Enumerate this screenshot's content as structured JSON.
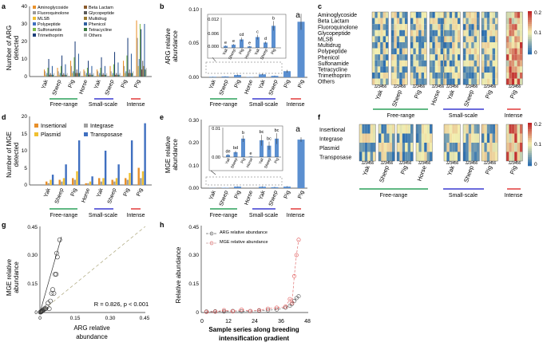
{
  "panels": {
    "a": {
      "letter": "a",
      "ylabel": [
        "Number of ARG",
        "detected"
      ],
      "yticks": [
        "0",
        "10",
        "20",
        "30",
        "40"
      ],
      "legend": [
        "Aminoglycoside",
        "Fluoroquinolone",
        "MLSB",
        "Polypeptide",
        "Sulfonamide",
        "Trimethoprim",
        "Beta Lactam",
        "Glycopeptide",
        "Multidrug",
        "Phenicol",
        "Tetracycline",
        "Others"
      ],
      "xlabels": [
        "Yak",
        "Sheep",
        "Pig",
        "Horse",
        "Yak",
        "Sheep",
        "Pig",
        "Pig"
      ],
      "groups": [
        "Free-range",
        "Small-scale",
        "Intense"
      ]
    },
    "b": {
      "letter": "b",
      "ylabel": [
        "ARG relative",
        "abundance"
      ],
      "yticks": [
        "0.00",
        "0.05",
        "0.10"
      ],
      "inset_yticks": [
        "0.000",
        "0.006",
        "0.012"
      ],
      "inset_xlabels": [
        "Yak",
        "Sheep",
        "Pig",
        "Horse",
        "Yak",
        "Sheep",
        "Pig"
      ],
      "inset_letters": [
        "e",
        "e",
        "cd",
        "e",
        "c",
        "d",
        "b"
      ],
      "bar_letter": "a",
      "xlabels": [
        "Yak",
        "Sheep",
        "Pig",
        "Horse",
        "Yak",
        "Sheep",
        "Pig",
        "Pig"
      ],
      "groups": [
        "Free-range",
        "Small-scale",
        "Intense"
      ]
    },
    "c": {
      "letter": "c",
      "rows": [
        "Aminoglycoside",
        "Beta Lactam",
        "Fluoroquinolone",
        "Glycopeptide",
        "MLSB",
        "Multidrug",
        "Polypeptide",
        "Phenicol",
        "Sulfonamide",
        "Tetracycline",
        "Trimethoprim",
        "Others"
      ],
      "colorbar": [
        "0.2",
        "0.1",
        "0"
      ],
      "colnums": "123456",
      "xlabels": [
        "Yak",
        "Sheep",
        "Pig",
        "Horse",
        "Yak",
        "Sheep",
        "Pig",
        "Pig"
      ],
      "groups": [
        "Free-range",
        "Small-scale",
        "Intense"
      ]
    },
    "d": {
      "letter": "d",
      "ylabel": [
        "Number of MGE",
        "detected"
      ],
      "yticks": [
        "0",
        "5",
        "10",
        "15",
        "20"
      ],
      "legend": [
        "Insertional",
        "Integrase",
        "Plasmid",
        "Transposase"
      ],
      "xlabels": [
        "Yak",
        "Sheep",
        "Pig",
        "Horse",
        "Yak",
        "Sheep",
        "Pig",
        "Pig"
      ],
      "groups": [
        "Free-range",
        "Small-scale",
        "Intense"
      ]
    },
    "e": {
      "letter": "e",
      "ylabel": [
        "MGE relative",
        "abundance"
      ],
      "yticks": [
        "0.00",
        "0.10",
        "0.20",
        "0.30"
      ],
      "inset_yticks": [
        "0.00",
        "0.01"
      ],
      "inset_xlabels": [
        "Yak",
        "Sheep",
        "Pig",
        "Horse",
        "Yak",
        "Sheep",
        "Pig"
      ],
      "inset_letters": [
        "de",
        "bd",
        "b",
        "e",
        "bc",
        "bc",
        "bc"
      ],
      "bar_letter": "a",
      "xlabels": [
        "Yak",
        "Sheep",
        "Pig",
        "Horse",
        "Yak",
        "Sheep",
        "Pig",
        "Pig"
      ],
      "groups": [
        "Free-range",
        "Small-scale",
        "Intense"
      ]
    },
    "f": {
      "letter": "f",
      "rows": [
        "Insertional",
        "Integrase",
        "Plasmid",
        "Transposase"
      ],
      "colorbar": [
        "0.2",
        "0.1",
        "0"
      ],
      "colnums": "123456",
      "xlabels": [
        "Yak",
        "Sheep",
        "Pig",
        "Horse",
        "Yak",
        "Sheep",
        "Pig",
        "Pig"
      ],
      "groups": [
        "Free-range",
        "Small-scale",
        "Intense"
      ]
    },
    "g": {
      "letter": "g",
      "ylabel": [
        "MGE relative",
        "abundance"
      ],
      "xlabel": [
        "ARG relative",
        "abundance"
      ],
      "yticks": [
        "0",
        "0.15",
        "0.30",
        "0.45"
      ],
      "xticks": [
        "0",
        "0.15",
        "0.30",
        "0.45"
      ],
      "stat": "R = 0.826, p < 0.001"
    },
    "h": {
      "letter": "h",
      "ylabel": "Relative abundance",
      "xlabel": [
        "Sample series along breeding",
        "intensification gradient"
      ],
      "yticks": [
        "0",
        "0.15",
        "0.30",
        "0.45"
      ],
      "xticks": [
        "0",
        "12",
        "24",
        "36",
        "48"
      ],
      "legend": [
        "ARG relative abundance",
        "MGE relative abundance"
      ]
    }
  },
  "colors": {
    "green": "#2ca05a",
    "blue": "#3a3ad0",
    "red": "#e23a3a",
    "bar": "#5b8fd0",
    "heat_low": "#2c6fb0",
    "heat_mid": "#f4efaf",
    "heat_high": "#c0282a"
  },
  "chart_data": [
    {
      "type": "bar",
      "title": "Number of ARG detected",
      "ylim": [
        0,
        40
      ],
      "series_count": 12,
      "categories": [
        "Yak",
        "Sheep",
        "Pig",
        "Horse",
        "Yak",
        "Sheep",
        "Pig",
        "Pig"
      ],
      "series": [
        {
          "name": "Aminoglycoside",
          "values": [
            4,
            5,
            9,
            4,
            4,
            6,
            9,
            32
          ]
        },
        {
          "name": "Beta Lactam",
          "values": [
            3,
            3,
            6,
            3,
            3,
            3,
            6,
            22
          ]
        },
        {
          "name": "Fluoroquinolone",
          "values": [
            1,
            1,
            2,
            1,
            1,
            1,
            2,
            6
          ]
        },
        {
          "name": "Glycopeptide",
          "values": [
            2,
            2,
            3,
            2,
            2,
            2,
            3,
            10
          ]
        },
        {
          "name": "MLSB",
          "values": [
            5,
            6,
            11,
            5,
            5,
            7,
            12,
            30
          ]
        },
        {
          "name": "Multidrug",
          "values": [
            10,
            12,
            20,
            9,
            11,
            14,
            22,
            27
          ]
        },
        {
          "name": "Polypeptide",
          "values": [
            1,
            1,
            2,
            1,
            1,
            1,
            2,
            4
          ]
        },
        {
          "name": "Phenicol",
          "values": [
            2,
            2,
            4,
            2,
            2,
            2,
            4,
            9
          ]
        },
        {
          "name": "Sulfonamide",
          "values": [
            1,
            1,
            2,
            1,
            1,
            1,
            2,
            6
          ]
        },
        {
          "name": "Tetracycline",
          "values": [
            6,
            7,
            13,
            6,
            6,
            8,
            13,
            30
          ]
        },
        {
          "name": "Trimethoprim",
          "values": [
            1,
            1,
            2,
            1,
            1,
            1,
            2,
            4
          ]
        },
        {
          "name": "Others",
          "values": [
            2,
            2,
            3,
            2,
            2,
            2,
            3,
            5
          ]
        }
      ]
    },
    {
      "type": "bar",
      "title": "ARG relative abundance",
      "ylim": [
        0,
        0.1
      ],
      "categories": [
        "Yak",
        "Sheep",
        "Pig",
        "Horse",
        "Yak",
        "Sheep",
        "Pig",
        "Pig"
      ],
      "values": [
        0.0008,
        0.0013,
        0.0035,
        0.0006,
        0.0045,
        0.0022,
        0.0092,
        0.083
      ],
      "errors": [
        0.0002,
        0.0003,
        0.0008,
        0.0002,
        0.001,
        0.0005,
        0.002,
        0.012
      ]
    },
    {
      "type": "bar",
      "title": "Number of MGE detected",
      "ylim": [
        0,
        20
      ],
      "categories": [
        "Yak",
        "Sheep",
        "Pig",
        "Horse",
        "Yak",
        "Sheep",
        "Pig",
        "Pig"
      ],
      "series": [
        {
          "name": "Insertional",
          "values": [
            1,
            1.5,
            2,
            0.5,
            2,
            1.5,
            2,
            5
          ]
        },
        {
          "name": "Integrase",
          "values": [
            0.5,
            1,
            1.5,
            0.5,
            1,
            1,
            1.5,
            2
          ]
        },
        {
          "name": "Plasmid",
          "values": [
            1.5,
            2,
            4,
            1,
            2,
            2,
            3.5,
            4
          ]
        },
        {
          "name": "Transposase",
          "values": [
            3,
            6,
            13,
            2.5,
            10,
            6,
            13,
            18
          ]
        }
      ]
    },
    {
      "type": "bar",
      "title": "MGE relative abundance",
      "ylim": [
        0,
        0.3
      ],
      "categories": [
        "Yak",
        "Sheep",
        "Pig",
        "Horse",
        "Yak",
        "Sheep",
        "Pig",
        "Pig"
      ],
      "values": [
        0.0008,
        0.0018,
        0.0068,
        0.0002,
        0.0062,
        0.0042,
        0.0068,
        0.215
      ],
      "errors": [
        0.0003,
        0.0005,
        0.0012,
        0.0001,
        0.002,
        0.0015,
        0.002,
        0.01
      ]
    },
    {
      "type": "scatter",
      "title": "MGE vs ARG relative abundance",
      "xlabel": "ARG relative abundance",
      "ylabel": "MGE relative abundance",
      "xlim": [
        0,
        0.45
      ],
      "ylim": [
        0,
        0.45
      ],
      "x": [
        0.002,
        0.004,
        0.005,
        0.007,
        0.009,
        0.011,
        0.013,
        0.016,
        0.02,
        0.025,
        0.03,
        0.035,
        0.04,
        0.045,
        0.05,
        0.055,
        0.06,
        0.065,
        0.07,
        0.072,
        0.075,
        0.085
      ],
      "y": [
        0.002,
        0.003,
        0.005,
        0.006,
        0.008,
        0.01,
        0.012,
        0.015,
        0.02,
        0.02,
        0.03,
        0.05,
        0.02,
        0.06,
        0.1,
        0.12,
        0.1,
        0.2,
        0.2,
        0.31,
        0.29,
        0.38
      ]
    },
    {
      "type": "line",
      "title": "Relative abundance along gradient",
      "xlabel": "Sample series along breeding intensification gradient",
      "ylabel": "Relative abundance",
      "xlim": [
        0,
        48
      ],
      "ylim": [
        0,
        0.45
      ],
      "series": [
        {
          "name": "ARG relative abundance",
          "x": [
            2,
            6,
            10,
            14,
            18,
            22,
            26,
            30,
            34,
            38,
            40,
            41,
            42,
            43,
            44
          ],
          "y": [
            0.005,
            0.006,
            0.005,
            0.008,
            0.006,
            0.007,
            0.01,
            0.012,
            0.015,
            0.025,
            0.035,
            0.045,
            0.06,
            0.075,
            0.085
          ]
        },
        {
          "name": "MGE relative abundance",
          "x": [
            2,
            6,
            10,
            14,
            18,
            22,
            26,
            30,
            34,
            38,
            40,
            41,
            42,
            43,
            44
          ],
          "y": [
            0.003,
            0.004,
            0.012,
            0.006,
            0.015,
            0.008,
            0.012,
            0.02,
            0.025,
            0.03,
            0.07,
            0.05,
            0.19,
            0.3,
            0.38
          ]
        }
      ]
    }
  ]
}
